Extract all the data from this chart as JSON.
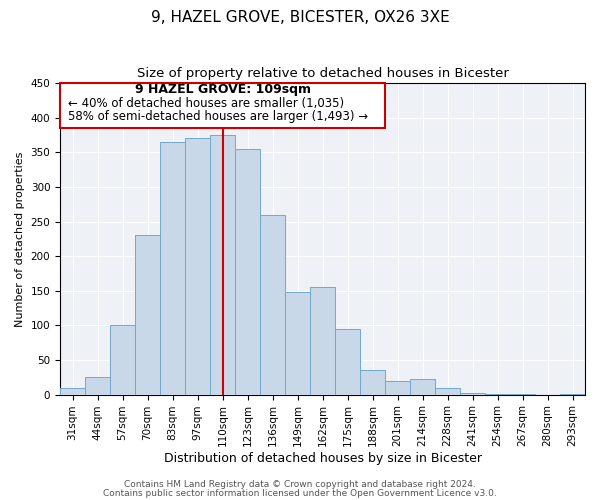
{
  "title": "9, HAZEL GROVE, BICESTER, OX26 3XE",
  "subtitle": "Size of property relative to detached houses in Bicester",
  "xlabel": "Distribution of detached houses by size in Bicester",
  "ylabel": "Number of detached properties",
  "bar_labels": [
    "31sqm",
    "44sqm",
    "57sqm",
    "70sqm",
    "83sqm",
    "97sqm",
    "110sqm",
    "123sqm",
    "136sqm",
    "149sqm",
    "162sqm",
    "175sqm",
    "188sqm",
    "201sqm",
    "214sqm",
    "228sqm",
    "241sqm",
    "254sqm",
    "267sqm",
    "280sqm",
    "293sqm"
  ],
  "bar_values": [
    10,
    25,
    100,
    230,
    365,
    370,
    375,
    355,
    260,
    148,
    155,
    95,
    35,
    20,
    22,
    10,
    3,
    1,
    1,
    0,
    1
  ],
  "bar_color": "#c8d8e8",
  "bar_edge_color": "#6fa8cc",
  "highlight_index": 6,
  "highlight_line_color": "#cc0000",
  "ylim": [
    0,
    450
  ],
  "yticks": [
    0,
    50,
    100,
    150,
    200,
    250,
    300,
    350,
    400,
    450
  ],
  "annotation_title": "9 HAZEL GROVE: 109sqm",
  "annotation_line1": "← 40% of detached houses are smaller (1,035)",
  "annotation_line2": "58% of semi-detached houses are larger (1,493) →",
  "annotation_box_color": "#ffffff",
  "annotation_box_edge": "#cc0000",
  "footer_line1": "Contains HM Land Registry data © Crown copyright and database right 2024.",
  "footer_line2": "Contains public sector information licensed under the Open Government Licence v3.0.",
  "title_fontsize": 11,
  "subtitle_fontsize": 9.5,
  "xlabel_fontsize": 9,
  "ylabel_fontsize": 8,
  "tick_fontsize": 7.5,
  "annotation_title_fontsize": 9,
  "annotation_fontsize": 8.5,
  "footer_fontsize": 6.5
}
